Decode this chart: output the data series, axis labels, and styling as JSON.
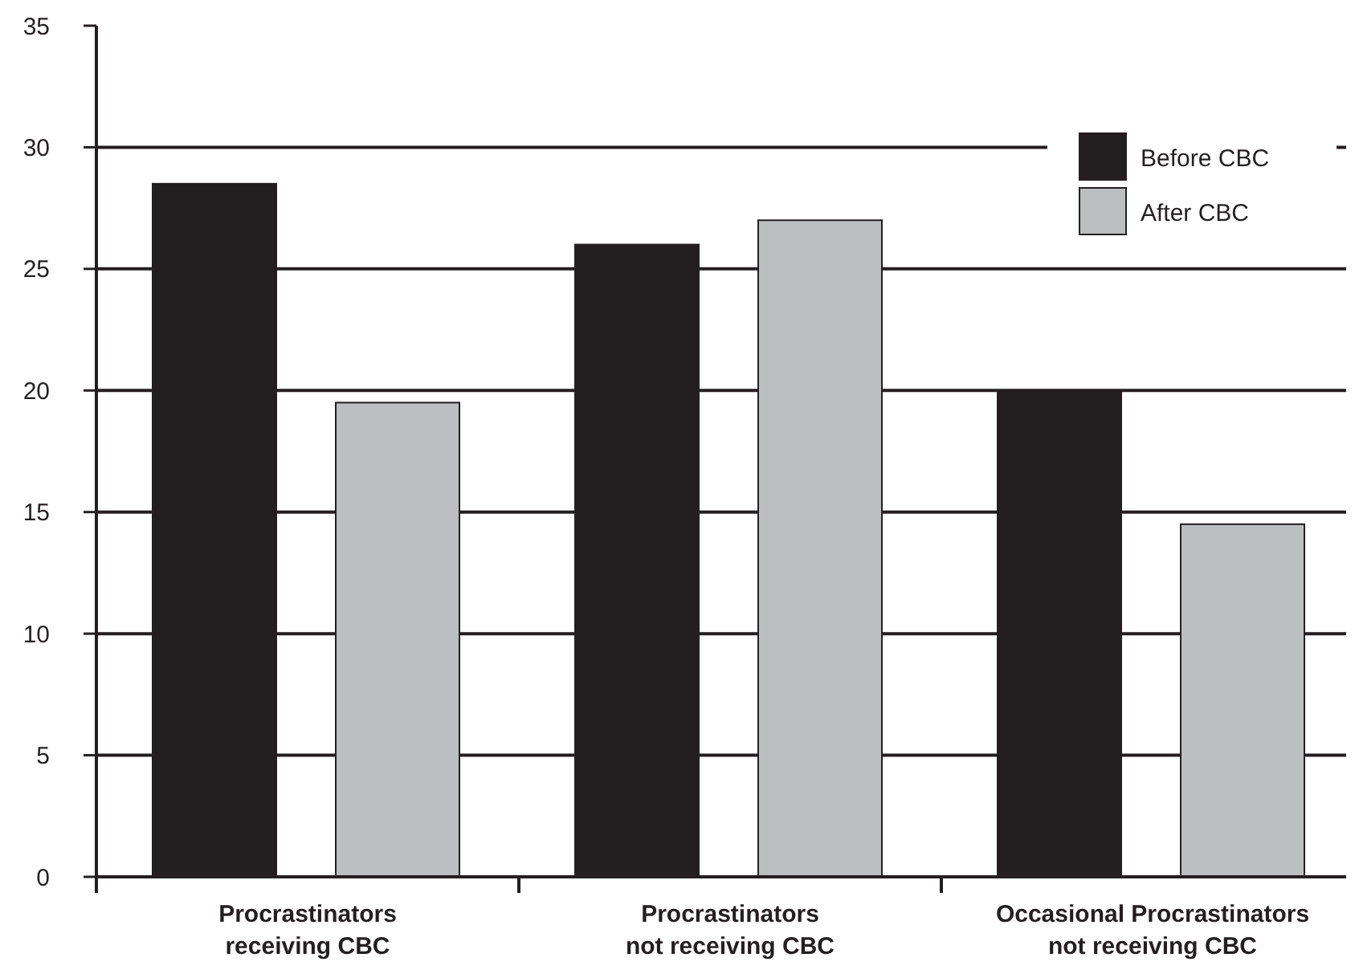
{
  "chart_data": {
    "type": "bar",
    "categories": [
      "Procrastinators\nreceiving CBC",
      "Procrastinators\nnot receiving CBC",
      "Occasional Procrastinators\nnot receiving CBC"
    ],
    "series": [
      {
        "name": "Before CBC",
        "color": "#231f20",
        "values": [
          28.5,
          26,
          20
        ]
      },
      {
        "name": "After CBC",
        "color": "#bcbec0",
        "values": [
          19.5,
          27,
          14.5
        ]
      }
    ],
    "ylim": [
      0,
      35
    ],
    "yticks": [
      0,
      5,
      10,
      15,
      20,
      25,
      30,
      35
    ],
    "grid": "y",
    "legend": "top right"
  }
}
